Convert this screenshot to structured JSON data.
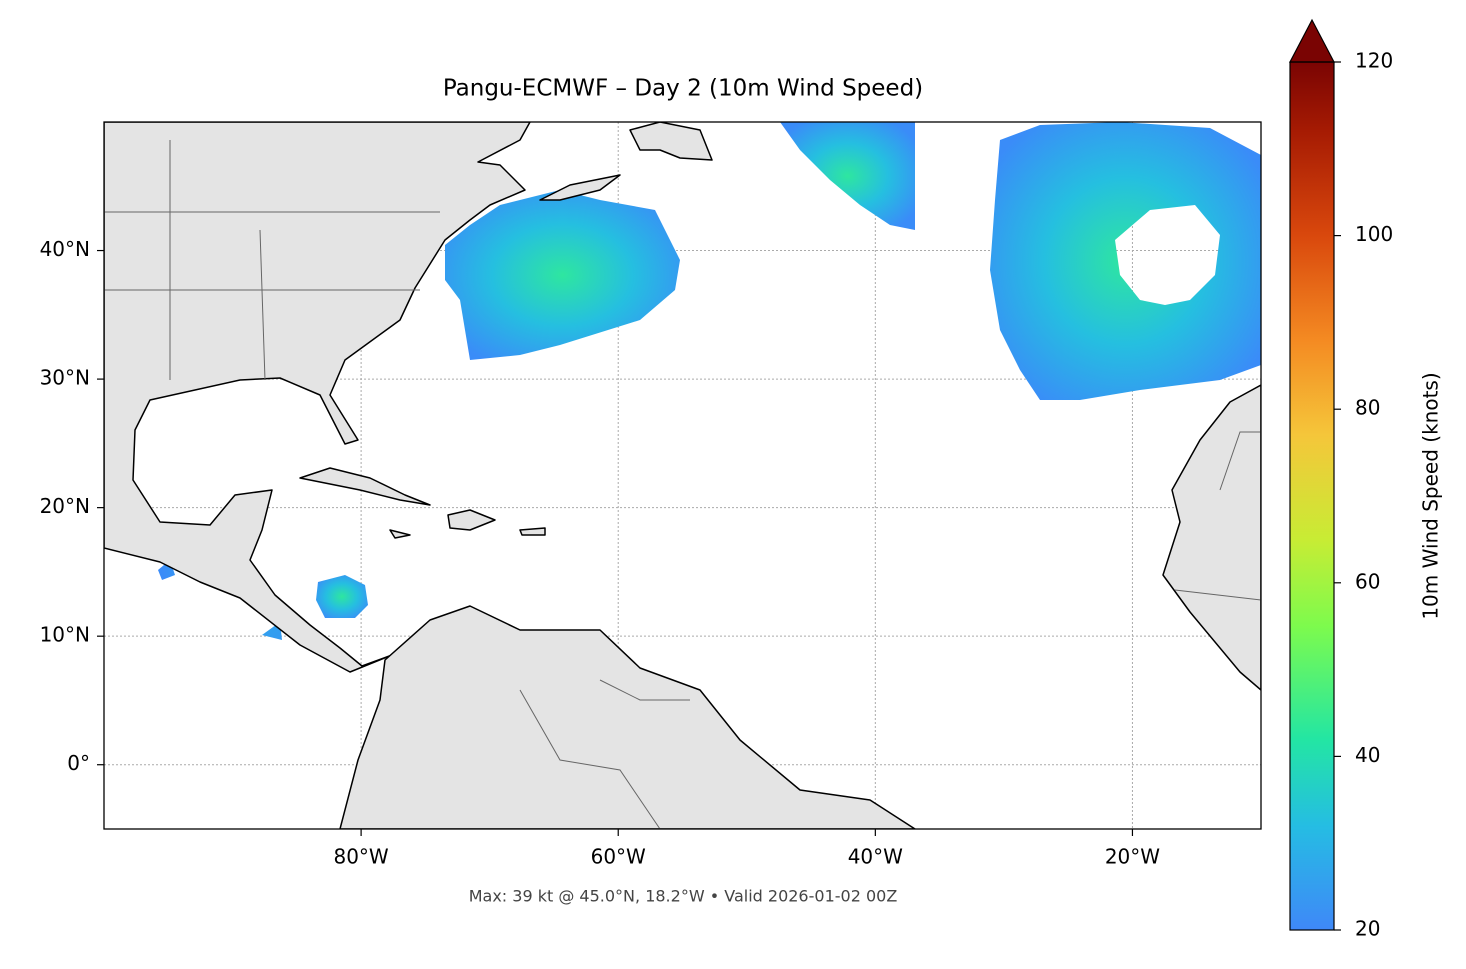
{
  "chart_data": {
    "type": "map",
    "title": "Pangu-ECMWF – Day 2 (10m Wind Speed)",
    "annotation": "Max: 39 kt @ 45.0°N, 18.2°W • Valid 2026-01-02 00Z",
    "xlim": [
      -100,
      -10
    ],
    "ylim": [
      -5,
      50
    ],
    "xticks": [
      {
        "value": -80,
        "label": "80°W"
      },
      {
        "value": -60,
        "label": "60°W"
      },
      {
        "value": -40,
        "label": "40°W"
      },
      {
        "value": -20,
        "label": "20°W"
      }
    ],
    "yticks": [
      {
        "value": 0,
        "label": "0°"
      },
      {
        "value": 10,
        "label": "10°N"
      },
      {
        "value": 20,
        "label": "20°N"
      },
      {
        "value": 30,
        "label": "30°N"
      },
      {
        "value": 40,
        "label": "40°N"
      }
    ],
    "grid": true,
    "colorbar": {
      "label": "10m Wind Speed (knots)",
      "lim": [
        20,
        120
      ],
      "ticks": [
        20,
        40,
        60,
        80,
        100,
        120
      ]
    }
  }
}
